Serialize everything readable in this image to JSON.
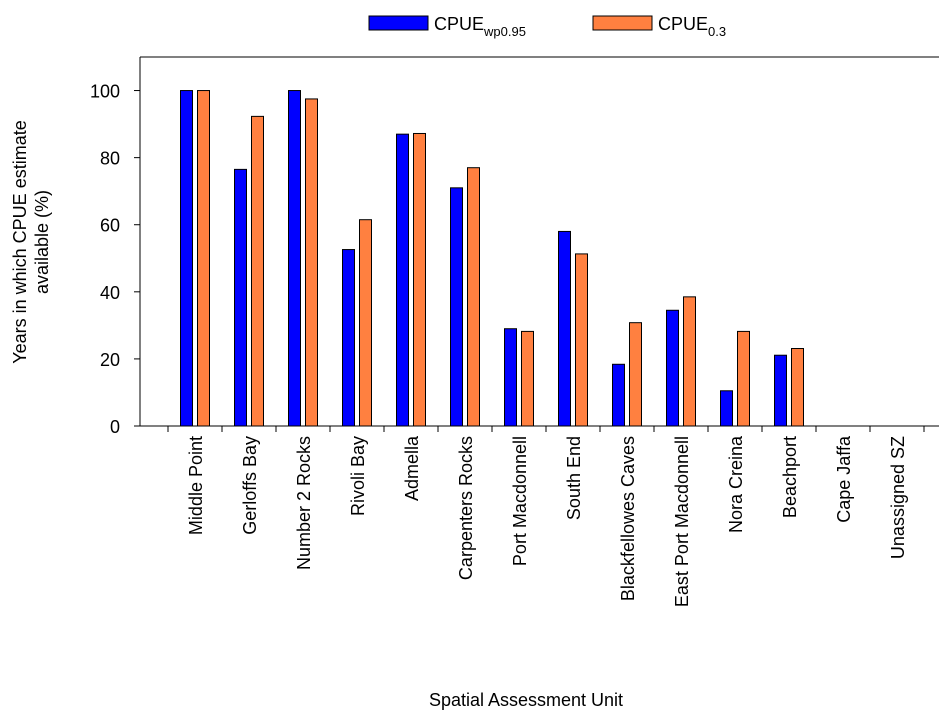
{
  "chart_data": {
    "type": "bar",
    "ylabel": [
      "Years in which CPUE estimate",
      "available (%)"
    ],
    "xlabel": "Spatial Assessment Unit",
    "categories": [
      "Middle Point",
      "Gerloffs Bay",
      "Number 2 Rocks",
      "Rivoli Bay",
      "Admella",
      "Carpenters Rocks",
      "Port Macdonnell",
      "South End",
      "Blackfellowes Caves",
      "East Port Macdonnell",
      "Nora Creina",
      "Beachport",
      "Cape Jaffa",
      "Unassigned SZ"
    ],
    "series": [
      {
        "name": "CPUE",
        "subscript": "wp0.95",
        "color": "#0000ff",
        "values": [
          100,
          76.5,
          100,
          52.6,
          87,
          71,
          29,
          58,
          18.4,
          34.5,
          10.5,
          21.1,
          0,
          0
        ]
      },
      {
        "name": "CPUE",
        "subscript": "0.3",
        "color": "#ff8040",
        "values": [
          100,
          92.3,
          97.5,
          61.5,
          87.2,
          77,
          28.2,
          51.3,
          30.8,
          38.5,
          28.2,
          23.1,
          0,
          0
        ]
      }
    ],
    "ylim": [
      0,
      110
    ],
    "yticks": [
      0,
      20,
      40,
      60,
      80,
      100
    ]
  }
}
